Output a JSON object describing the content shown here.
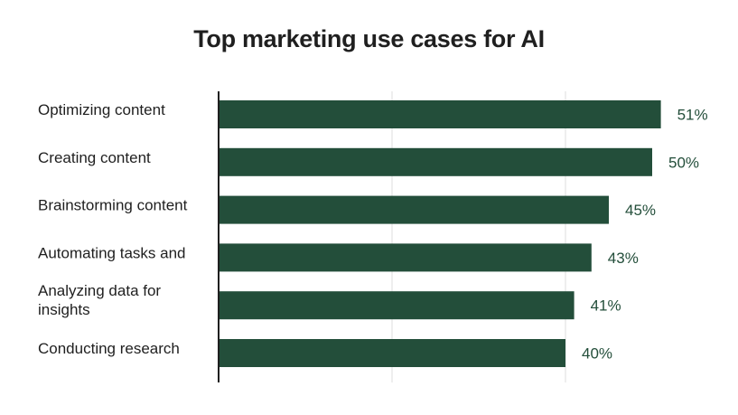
{
  "chart_data": {
    "type": "bar",
    "orientation": "horizontal",
    "title": "Top marketing use cases for AI",
    "categories": [
      "Optimizing content",
      "Creating content",
      "Brainstorming content",
      "Automating tasks and",
      "Analyzing data for insights",
      "Conducting research"
    ],
    "values": [
      51,
      50,
      45,
      43,
      41,
      40
    ],
    "value_labels": [
      "51%",
      "50%",
      "45%",
      "43%",
      "41%",
      "40%"
    ],
    "xlim": [
      0,
      60
    ],
    "xlabel": "",
    "ylabel": "",
    "grid": true,
    "legend": "none",
    "colors": {
      "bar": "#234e3a",
      "label": "#234e3a",
      "axis": "#1f1f1f",
      "grid": "#dcdcdc"
    }
  }
}
